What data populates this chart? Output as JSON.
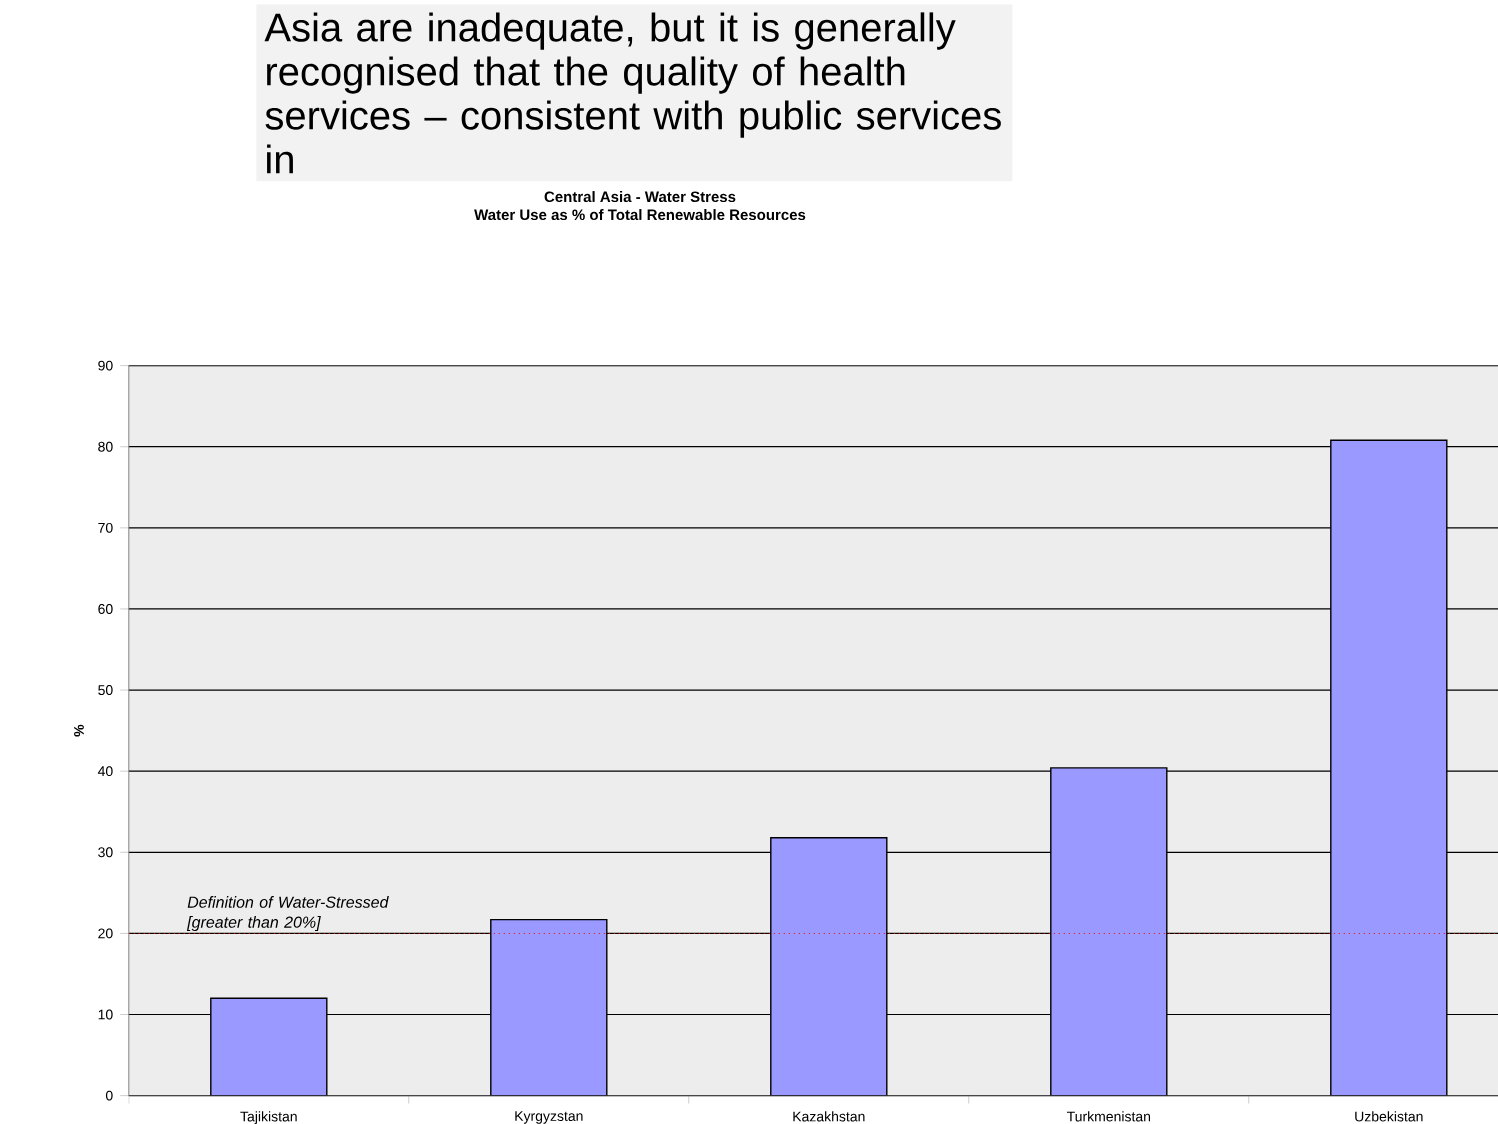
{
  "chart_data": {
    "type": "bar",
    "title": "Central Asia - Water Stress",
    "subtitle": "Water Use as % of Total Renewable Resources",
    "ylabel": "%",
    "annotations": [
      "Asia are inadequate, but it is generally recognised that the quality of health services – consistent with public services in"
    ],
    "categories": [
      "Tajikistan",
      "Kyrgyzstan",
      "Kazakhstan",
      "Turkmenistan",
      "Uzbekistan"
    ],
    "values": [
      12,
      21.7,
      31.8,
      40.4,
      80.8
    ],
    "color": "#9999ff",
    "ylim": [
      0,
      90
    ],
    "yticks": [
      0,
      10,
      20,
      30,
      40,
      50,
      60,
      70,
      80,
      90
    ],
    "grid": "y",
    "ref_lines": [
      {
        "axis": "y",
        "value": 20,
        "label": "Definition of Water-Stressed [greater than 20%]",
        "color": "#ff0000",
        "line_style": "dotted"
      }
    ]
  }
}
